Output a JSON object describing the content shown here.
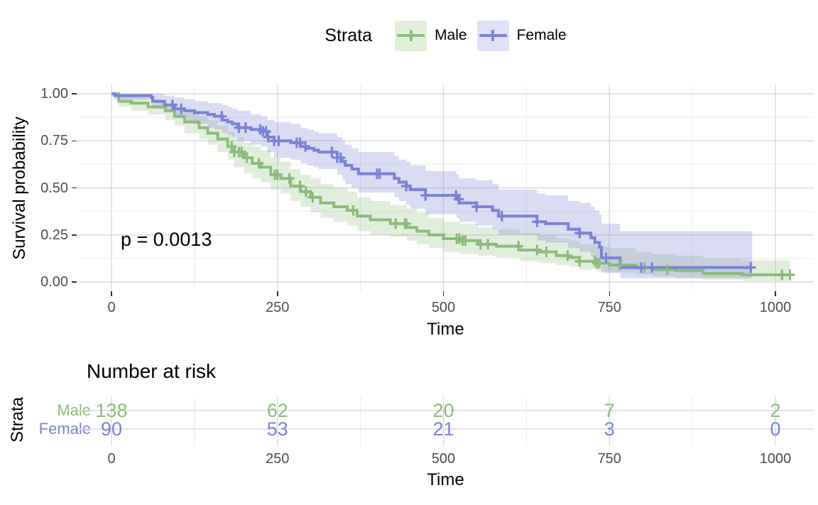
{
  "legend": {
    "title": "Strata",
    "items": [
      {
        "label": "Male",
        "color": "#8CBC7C",
        "key_bg": "#E3F0DC"
      },
      {
        "label": "Female",
        "color": "#7B83D5",
        "key_bg": "#DEE1F7"
      }
    ]
  },
  "axes": {
    "y_title": "Survival probability",
    "x_title": "Time"
  },
  "annotation": {
    "p_value": "p = 0.0013"
  },
  "risk_table_text": {
    "title": "Number at risk",
    "strata_axis_label": "Strata",
    "x_title": "Time"
  },
  "chart_data": {
    "type": "line",
    "subtype": "kaplan-meier-survival-step",
    "title": "",
    "xlabel": "Time",
    "ylabel": "Survival probability",
    "xlim": [
      -51,
      1073
    ],
    "ylim": [
      -0.049,
      1.049
    ],
    "grid": true,
    "legend_position": "top",
    "p_value_text": "p = 0.0013",
    "x_ticks": [
      {
        "value": 0,
        "label": "0"
      },
      {
        "value": 250,
        "label": "250"
      },
      {
        "value": 500,
        "label": "500"
      },
      {
        "value": 750,
        "label": "750"
      },
      {
        "value": 1000,
        "label": "1000"
      }
    ],
    "y_ticks": [
      {
        "value": 0,
        "label": "0.00"
      },
      {
        "value": 0.25,
        "label": "0.25"
      },
      {
        "value": 0.5,
        "label": "0.50"
      },
      {
        "value": 0.75,
        "label": "0.75"
      },
      {
        "value": 1,
        "label": "1.00"
      }
    ],
    "minor_x": [
      125,
      375,
      625,
      875
    ],
    "minor_y": [
      0.125,
      0.375,
      0.625,
      0.875
    ],
    "colors": {
      "grid_major": "#DBDBDB",
      "grid_minor": "#ECECEC",
      "tick_text": "#4d4d4d",
      "male": "#8CBC7C",
      "female": "#7B83D5"
    },
    "series": [
      {
        "name": "Male",
        "color": "#8CBC7C",
        "band_rgba": "rgba(140,188,124,0.26)",
        "end_time": 1022,
        "steps": [
          [
            0,
            1,
            1,
            1
          ],
          [
            11,
            0.96,
            0.93,
            0.99
          ],
          [
            30,
            0.95,
            0.91,
            0.99
          ],
          [
            55,
            0.93,
            0.89,
            0.97
          ],
          [
            81,
            0.91,
            0.86,
            0.95
          ],
          [
            95,
            0.88,
            0.83,
            0.93
          ],
          [
            110,
            0.85,
            0.79,
            0.91
          ],
          [
            132,
            0.82,
            0.76,
            0.88
          ],
          [
            145,
            0.79,
            0.73,
            0.86
          ],
          [
            160,
            0.76,
            0.69,
            0.83
          ],
          [
            175,
            0.72,
            0.65,
            0.8
          ],
          [
            185,
            0.69,
            0.61,
            0.77
          ],
          [
            200,
            0.66,
            0.58,
            0.74
          ],
          [
            212,
            0.63,
            0.55,
            0.72
          ],
          [
            225,
            0.61,
            0.53,
            0.7
          ],
          [
            240,
            0.57,
            0.49,
            0.66
          ],
          [
            255,
            0.55,
            0.47,
            0.64
          ],
          [
            270,
            0.51,
            0.43,
            0.6
          ],
          [
            285,
            0.48,
            0.4,
            0.57
          ],
          [
            300,
            0.45,
            0.37,
            0.55
          ],
          [
            315,
            0.42,
            0.34,
            0.52
          ],
          [
            335,
            0.4,
            0.32,
            0.5
          ],
          [
            355,
            0.38,
            0.3,
            0.48
          ],
          [
            370,
            0.35,
            0.27,
            0.45
          ],
          [
            390,
            0.33,
            0.25,
            0.43
          ],
          [
            420,
            0.31,
            0.24,
            0.41
          ],
          [
            445,
            0.29,
            0.22,
            0.39
          ],
          [
            460,
            0.27,
            0.2,
            0.37
          ],
          [
            478,
            0.25,
            0.18,
            0.34
          ],
          [
            500,
            0.23,
            0.16,
            0.32
          ],
          [
            525,
            0.22,
            0.15,
            0.31
          ],
          [
            552,
            0.2,
            0.14,
            0.29
          ],
          [
            580,
            0.19,
            0.13,
            0.28
          ],
          [
            615,
            0.17,
            0.11,
            0.26
          ],
          [
            645,
            0.16,
            0.1,
            0.25
          ],
          [
            670,
            0.14,
            0.09,
            0.23
          ],
          [
            690,
            0.13,
            0.08,
            0.22
          ],
          [
            705,
            0.11,
            0.065,
            0.2
          ],
          [
            730,
            0.1,
            0.055,
            0.19
          ],
          [
            750,
            0.09,
            0.05,
            0.18
          ],
          [
            790,
            0.075,
            0.04,
            0.16
          ],
          [
            815,
            0.065,
            0.03,
            0.15
          ],
          [
            850,
            0.06,
            0.02,
            0.14
          ],
          [
            891,
            0.045,
            0.012,
            0.125
          ],
          [
            950,
            0.038,
            0.005,
            0.115
          ]
        ],
        "censored": [
          181,
          185,
          192,
          196,
          204,
          222,
          246,
          250,
          268,
          284,
          293,
          303,
          364,
          428,
          442,
          444,
          520,
          524,
          529,
          533,
          556,
          567,
          613,
          641,
          655,
          687,
          705,
          728,
          731,
          735,
          765,
          803,
          837,
          1010,
          1022
        ],
        "risk_counts": [
          138,
          62,
          20,
          7,
          2
        ]
      },
      {
        "name": "Female",
        "color": "#7B83D5",
        "band_rgba": "rgba(123,131,213,0.28)",
        "end_time": 965,
        "steps": [
          [
            0,
            1,
            1,
            1
          ],
          [
            5,
            0.99,
            0.97,
            1
          ],
          [
            60,
            0.98,
            0.95,
            1
          ],
          [
            62,
            0.96,
            0.92,
            1
          ],
          [
            80,
            0.94,
            0.9,
            0.99
          ],
          [
            95,
            0.92,
            0.87,
            0.98
          ],
          [
            110,
            0.91,
            0.85,
            0.97
          ],
          [
            125,
            0.9,
            0.84,
            0.96
          ],
          [
            145,
            0.89,
            0.82,
            0.95
          ],
          [
            155,
            0.88,
            0.81,
            0.95
          ],
          [
            167,
            0.86,
            0.79,
            0.94
          ],
          [
            175,
            0.85,
            0.78,
            0.93
          ],
          [
            182,
            0.84,
            0.77,
            0.92
          ],
          [
            190,
            0.82,
            0.75,
            0.91
          ],
          [
            210,
            0.81,
            0.73,
            0.89
          ],
          [
            225,
            0.8,
            0.72,
            0.88
          ],
          [
            235,
            0.77,
            0.69,
            0.86
          ],
          [
            245,
            0.75,
            0.66,
            0.85
          ],
          [
            270,
            0.74,
            0.65,
            0.84
          ],
          [
            285,
            0.72,
            0.63,
            0.82
          ],
          [
            295,
            0.71,
            0.62,
            0.81
          ],
          [
            305,
            0.7,
            0.61,
            0.8
          ],
          [
            312,
            0.69,
            0.6,
            0.79
          ],
          [
            340,
            0.66,
            0.57,
            0.77
          ],
          [
            348,
            0.64,
            0.54,
            0.75
          ],
          [
            352,
            0.62,
            0.52,
            0.73
          ],
          [
            362,
            0.6,
            0.5,
            0.71
          ],
          [
            372,
            0.575,
            0.475,
            0.69
          ],
          [
            426,
            0.55,
            0.45,
            0.67
          ],
          [
            433,
            0.53,
            0.43,
            0.65
          ],
          [
            444,
            0.51,
            0.41,
            0.64
          ],
          [
            450,
            0.49,
            0.39,
            0.62
          ],
          [
            473,
            0.46,
            0.36,
            0.59
          ],
          [
            520,
            0.44,
            0.34,
            0.57
          ],
          [
            524,
            0.42,
            0.32,
            0.55
          ],
          [
            550,
            0.4,
            0.3,
            0.54
          ],
          [
            574,
            0.38,
            0.28,
            0.52
          ],
          [
            583,
            0.35,
            0.25,
            0.49
          ],
          [
            641,
            0.32,
            0.22,
            0.47
          ],
          [
            654,
            0.31,
            0.21,
            0.46
          ],
          [
            688,
            0.28,
            0.18,
            0.43
          ],
          [
            705,
            0.26,
            0.16,
            0.42
          ],
          [
            722,
            0.235,
            0.135,
            0.4
          ],
          [
            728,
            0.21,
            0.11,
            0.38
          ],
          [
            735,
            0.185,
            0.095,
            0.36
          ],
          [
            738,
            0.128,
            0.048,
            0.31
          ],
          [
            766,
            0.077,
            0.02,
            0.27
          ]
        ],
        "censored": [
          92,
          105,
          166,
          192,
          202,
          224,
          228,
          233,
          236,
          245,
          252,
          279,
          284,
          292,
          332,
          340,
          345,
          400,
          404,
          444,
          473,
          519,
          523,
          550,
          588,
          641,
          705,
          745,
          798,
          814,
          963
        ],
        "risk_counts": [
          90,
          53,
          21,
          3,
          0
        ]
      }
    ],
    "risk_table": {
      "title": "Number at risk",
      "strata_label": "Strata",
      "times": [
        0,
        250,
        500,
        750,
        1000
      ],
      "rows": [
        {
          "name": "Male",
          "color": "#8CBC7C",
          "counts": [
            138,
            62,
            20,
            7,
            2
          ]
        },
        {
          "name": "Female",
          "color": "#7B83D5",
          "counts": [
            90,
            53,
            21,
            3,
            0
          ]
        }
      ]
    }
  }
}
